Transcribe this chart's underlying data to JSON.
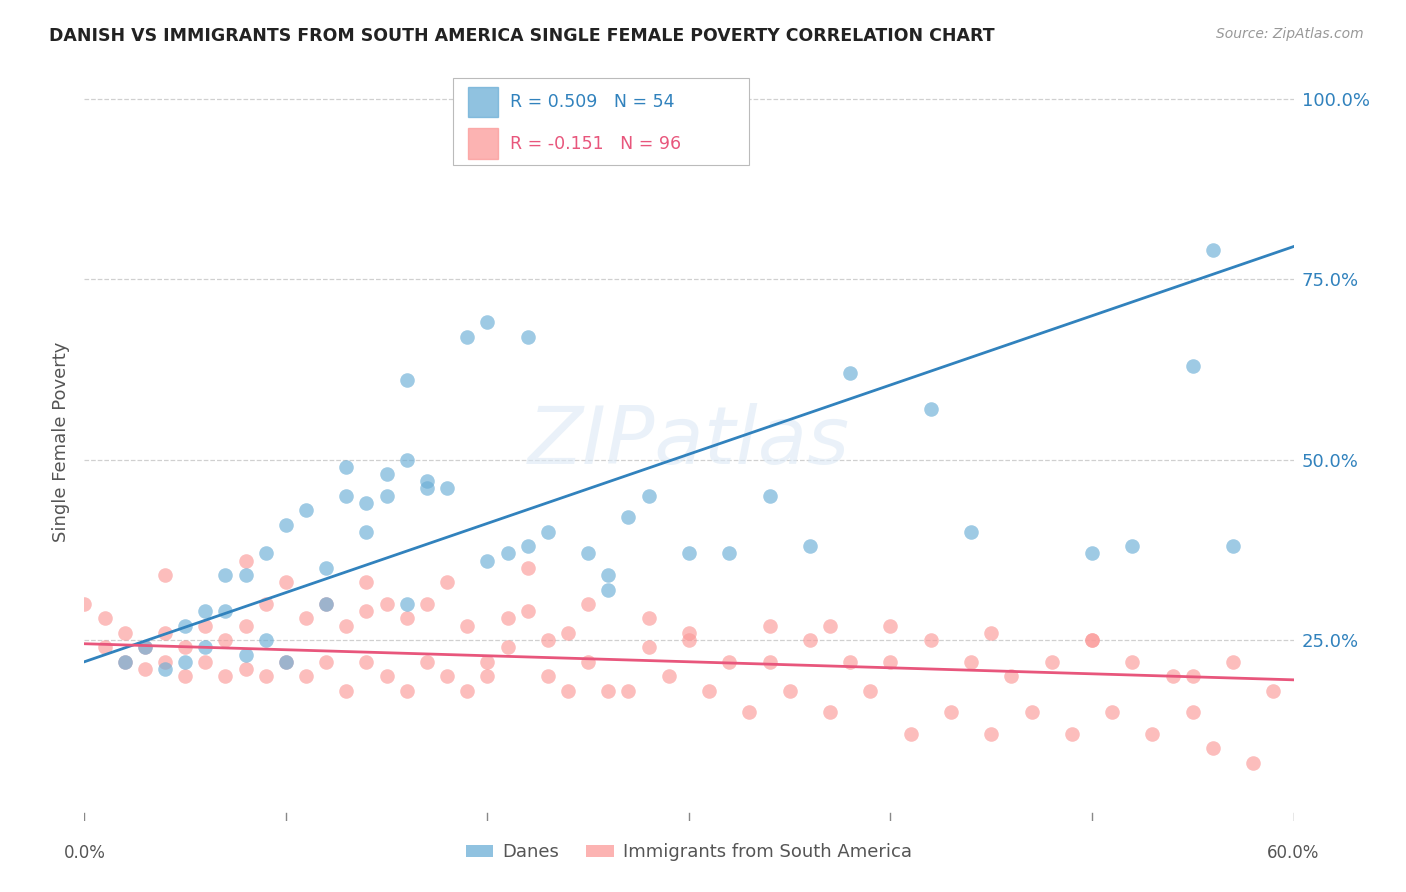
{
  "title": "DANISH VS IMMIGRANTS FROM SOUTH AMERICA SINGLE FEMALE POVERTY CORRELATION CHART",
  "source": "Source: ZipAtlas.com",
  "ylabel": "Single Female Poverty",
  "ytick_labels": [
    "100.0%",
    "75.0%",
    "50.0%",
    "25.0%"
  ],
  "ytick_values": [
    1.0,
    0.75,
    0.5,
    0.25
  ],
  "xlim": [
    0.0,
    0.6
  ],
  "ylim": [
    0.0,
    1.05
  ],
  "legend1_label": "Danes",
  "legend2_label": "Immigrants from South America",
  "blue_R": "R = 0.509",
  "blue_N": "N = 54",
  "pink_R": "R = -0.151",
  "pink_N": "N = 96",
  "blue_color": "#6baed6",
  "blue_line_color": "#3182bd",
  "pink_color": "#fb9a99",
  "pink_line_color": "#e8567c",
  "watermark": "ZIPatlas",
  "blue_scatter_x": [
    0.02,
    0.03,
    0.04,
    0.05,
    0.05,
    0.06,
    0.06,
    0.07,
    0.07,
    0.08,
    0.08,
    0.09,
    0.09,
    0.1,
    0.1,
    0.11,
    0.12,
    0.12,
    0.13,
    0.13,
    0.14,
    0.14,
    0.15,
    0.15,
    0.16,
    0.16,
    0.17,
    0.17,
    0.18,
    0.19,
    0.2,
    0.2,
    0.21,
    0.22,
    0.23,
    0.25,
    0.26,
    0.26,
    0.27,
    0.28,
    0.3,
    0.32,
    0.34,
    0.36,
    0.38,
    0.42,
    0.44,
    0.5,
    0.52,
    0.55,
    0.56,
    0.57,
    0.22,
    0.16
  ],
  "blue_scatter_y": [
    0.22,
    0.24,
    0.21,
    0.22,
    0.27,
    0.29,
    0.24,
    0.29,
    0.34,
    0.23,
    0.34,
    0.25,
    0.37,
    0.22,
    0.41,
    0.43,
    0.35,
    0.3,
    0.49,
    0.45,
    0.4,
    0.44,
    0.45,
    0.48,
    0.61,
    0.3,
    0.47,
    0.46,
    0.46,
    0.67,
    0.36,
    0.69,
    0.37,
    0.38,
    0.4,
    0.37,
    0.34,
    0.32,
    0.42,
    0.45,
    0.37,
    0.37,
    0.45,
    0.38,
    0.62,
    0.57,
    0.4,
    0.37,
    0.38,
    0.63,
    0.79,
    0.38,
    0.67,
    0.5
  ],
  "pink_scatter_x": [
    0.0,
    0.01,
    0.02,
    0.02,
    0.03,
    0.03,
    0.04,
    0.04,
    0.05,
    0.05,
    0.06,
    0.06,
    0.07,
    0.07,
    0.08,
    0.08,
    0.09,
    0.09,
    0.1,
    0.1,
    0.11,
    0.11,
    0.12,
    0.12,
    0.13,
    0.13,
    0.14,
    0.14,
    0.15,
    0.15,
    0.16,
    0.16,
    0.17,
    0.17,
    0.18,
    0.18,
    0.19,
    0.19,
    0.2,
    0.2,
    0.21,
    0.21,
    0.22,
    0.23,
    0.23,
    0.24,
    0.25,
    0.25,
    0.26,
    0.27,
    0.28,
    0.29,
    0.3,
    0.31,
    0.32,
    0.33,
    0.34,
    0.35,
    0.36,
    0.37,
    0.38,
    0.39,
    0.4,
    0.41,
    0.42,
    0.43,
    0.44,
    0.45,
    0.46,
    0.47,
    0.48,
    0.49,
    0.5,
    0.51,
    0.52,
    0.53,
    0.54,
    0.55,
    0.56,
    0.57,
    0.58,
    0.59,
    0.24,
    0.3,
    0.34,
    0.37,
    0.4,
    0.45,
    0.5,
    0.55,
    0.28,
    0.22,
    0.14,
    0.08,
    0.04,
    0.01
  ],
  "pink_scatter_y": [
    0.3,
    0.24,
    0.22,
    0.26,
    0.21,
    0.24,
    0.22,
    0.26,
    0.2,
    0.24,
    0.22,
    0.27,
    0.2,
    0.25,
    0.21,
    0.27,
    0.2,
    0.3,
    0.22,
    0.33,
    0.2,
    0.28,
    0.22,
    0.3,
    0.18,
    0.27,
    0.22,
    0.29,
    0.2,
    0.3,
    0.18,
    0.28,
    0.22,
    0.3,
    0.2,
    0.33,
    0.18,
    0.27,
    0.2,
    0.22,
    0.28,
    0.24,
    0.29,
    0.2,
    0.25,
    0.18,
    0.22,
    0.3,
    0.18,
    0.18,
    0.28,
    0.2,
    0.25,
    0.18,
    0.22,
    0.15,
    0.22,
    0.18,
    0.25,
    0.15,
    0.22,
    0.18,
    0.22,
    0.12,
    0.25,
    0.15,
    0.22,
    0.12,
    0.2,
    0.15,
    0.22,
    0.12,
    0.25,
    0.15,
    0.22,
    0.12,
    0.2,
    0.15,
    0.1,
    0.22,
    0.08,
    0.18,
    0.26,
    0.26,
    0.27,
    0.27,
    0.27,
    0.26,
    0.25,
    0.2,
    0.24,
    0.35,
    0.33,
    0.36,
    0.34,
    0.28
  ],
  "blue_line_x0": 0.0,
  "blue_line_x1": 0.6,
  "blue_line_y0": 0.22,
  "blue_line_y1": 0.795,
  "pink_line_x0": 0.0,
  "pink_line_x1": 0.6,
  "pink_line_y0": 0.245,
  "pink_line_y1": 0.195
}
